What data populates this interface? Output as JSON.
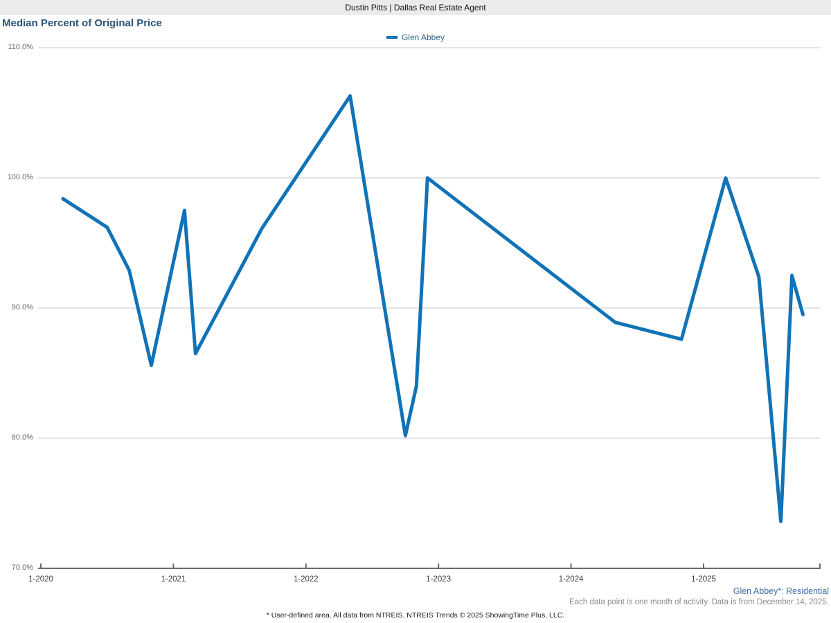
{
  "header": {
    "title": "Dustin Pitts | Dallas Real Estate Agent"
  },
  "chart": {
    "title": "Median Percent of Original Price",
    "legend_label": "Glen Abbey"
  },
  "footer": {
    "series_note": "Glen Abbey*: Residential",
    "data_note": "Each data point is one month of activity. Data is from December 14, 2025.",
    "attribution": "* User-defined area. All data from NTREIS. NTREIS Trends © 2025 ShowingTime Plus, LLC."
  },
  "colors": {
    "line": "#1173b7",
    "title": "#2a5378",
    "header_bar": "#ebebeb",
    "gridline": "#c9c9c9",
    "axis": "#6b6b6b",
    "footer_link": "#3e6fa6"
  },
  "chart_data": {
    "type": "line",
    "title": "Median Percent of Original Price",
    "ylim": [
      70,
      110
    ],
    "grid": true,
    "legend_position": "top-center",
    "y_ticks": [
      {
        "value": 110,
        "label": "110.0%"
      },
      {
        "value": 100,
        "label": "100.0%"
      },
      {
        "value": 90,
        "label": "90.0%"
      },
      {
        "value": 80,
        "label": "80.0%"
      },
      {
        "value": 70,
        "label": "70.0%"
      }
    ],
    "x_ticks": [
      "1-2020",
      "1-2021",
      "1-2022",
      "1-2023",
      "1-2024",
      "1-2025"
    ],
    "series": [
      {
        "name": "Glen Abbey",
        "color": "#1173b7",
        "points": [
          {
            "month": "3-2020",
            "value": 98.4
          },
          {
            "month": "7-2020",
            "value": 96.2
          },
          {
            "month": "9-2020",
            "value": 92.9
          },
          {
            "month": "11-2020",
            "value": 85.6
          },
          {
            "month": "2-2021",
            "value": 97.5
          },
          {
            "month": "3-2021",
            "value": 86.5
          },
          {
            "month": "9-2021",
            "value": 96.1
          },
          {
            "month": "5-2022",
            "value": 106.3
          },
          {
            "month": "10-2022",
            "value": 80.2
          },
          {
            "month": "11-2022",
            "value": 84.0
          },
          {
            "month": "12-2022",
            "value": 100.0
          },
          {
            "month": "5-2024",
            "value": 88.9
          },
          {
            "month": "11-2024",
            "value": 87.6
          },
          {
            "month": "3-2025",
            "value": 100.0
          },
          {
            "month": "6-2025",
            "value": 92.4
          },
          {
            "month": "8-2025",
            "value": 73.6
          },
          {
            "month": "9-2025",
            "value": 92.5
          },
          {
            "month": "10-2025",
            "value": 89.5
          }
        ]
      }
    ]
  }
}
